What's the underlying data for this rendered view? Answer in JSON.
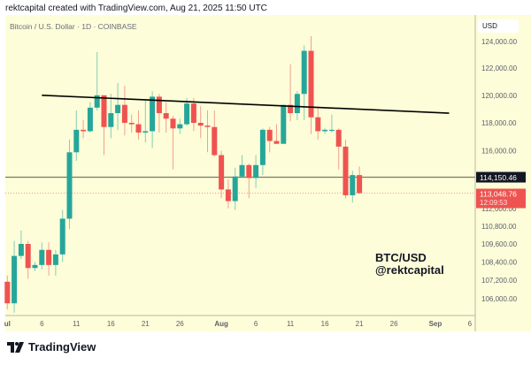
{
  "header": {
    "credit": "rektcapital created with TradingView.com, Aug 21, 2025 11:50 UTC"
  },
  "symbol_title": "Bitcoin / U.S. Dollar · 1D · COINBASE",
  "currency_label": "USD",
  "annotation": {
    "line1": "BTC/USD",
    "line2": "@rektcapital"
  },
  "footer": {
    "logo_text": "TradingView"
  },
  "colors": {
    "background": "#fdfdd9",
    "up": "#26a69a",
    "down": "#ef5350",
    "trendline": "#000000",
    "level_line": "#7b7d6a"
  },
  "chart_data": {
    "type": "candlestick",
    "title": "Bitcoin / U.S. Dollar · 1D · COINBASE",
    "y_scale": "log",
    "ylim": [
      105200,
      125300
    ],
    "y_ticks": [
      "124,000.00",
      "122,000.00",
      "120,000.00",
      "118,000.00",
      "116,000.00",
      "112,000.00",
      "110,800.00",
      "109,600.00",
      "108,400.00",
      "107,200.00",
      "106,000.00"
    ],
    "y_tick_values": [
      124000,
      122000,
      120000,
      118000,
      116000,
      112000,
      110800,
      109600,
      108400,
      107200,
      106000
    ],
    "x_ticks": [
      {
        "label": "ul",
        "date": "2025-07-01"
      },
      {
        "label": "6",
        "date": "2025-07-06"
      },
      {
        "label": "11",
        "date": "2025-07-11"
      },
      {
        "label": "16",
        "date": "2025-07-16"
      },
      {
        "label": "21",
        "date": "2025-07-21"
      },
      {
        "label": "26",
        "date": "2025-07-26"
      },
      {
        "label": "Aug",
        "date": "2025-08-01"
      },
      {
        "label": "6",
        "date": "2025-08-06"
      },
      {
        "label": "11",
        "date": "2025-08-11"
      },
      {
        "label": "16",
        "date": "2025-08-16"
      },
      {
        "label": "21",
        "date": "2025-08-21"
      },
      {
        "label": "26",
        "date": "2025-08-26"
      },
      {
        "label": "Sep",
        "date": "2025-09-01"
      },
      {
        "label": "6",
        "date": "2025-09-06"
      }
    ],
    "candles_fields": [
      "date",
      "open",
      "high",
      "low",
      "close"
    ],
    "candles": [
      [
        "2025-07-01",
        107100,
        107500,
        105300,
        105700
      ],
      [
        "2025-07-02",
        105700,
        109800,
        105100,
        108800
      ],
      [
        "2025-07-03",
        108800,
        110500,
        108600,
        109600
      ],
      [
        "2025-07-04",
        109600,
        109800,
        107300,
        108000
      ],
      [
        "2025-07-05",
        108000,
        108400,
        107800,
        108200
      ],
      [
        "2025-07-06",
        108200,
        109700,
        107900,
        109200
      ],
      [
        "2025-07-07",
        109200,
        109700,
        107500,
        108200
      ],
      [
        "2025-07-08",
        108200,
        109200,
        107500,
        108900
      ],
      [
        "2025-07-09",
        108900,
        111900,
        108400,
        111300
      ],
      [
        "2025-07-10",
        111300,
        116800,
        110600,
        115900
      ],
      [
        "2025-07-11",
        115900,
        118900,
        115300,
        117500
      ],
      [
        "2025-07-12",
        117500,
        118200,
        116900,
        117400
      ],
      [
        "2025-07-13",
        117400,
        119500,
        117300,
        119100
      ],
      [
        "2025-07-14",
        119100,
        123200,
        118900,
        120000
      ],
      [
        "2025-07-15",
        120000,
        120000,
        115700,
        117700
      ],
      [
        "2025-07-16",
        117700,
        120100,
        116900,
        118700
      ],
      [
        "2025-07-17",
        118700,
        120900,
        117500,
        119300
      ],
      [
        "2025-07-18",
        119300,
        120700,
        117100,
        118000
      ],
      [
        "2025-07-19",
        118000,
        118600,
        117300,
        117900
      ],
      [
        "2025-07-20",
        117900,
        118900,
        116800,
        117300
      ],
      [
        "2025-07-21",
        117300,
        119700,
        116600,
        117400
      ],
      [
        "2025-07-22",
        117400,
        120300,
        116200,
        119900
      ],
      [
        "2025-07-23",
        119900,
        120100,
        117300,
        118700
      ],
      [
        "2025-07-24",
        118700,
        119500,
        117300,
        118300
      ],
      [
        "2025-07-25",
        118300,
        118500,
        114700,
        117600
      ],
      [
        "2025-07-26",
        117600,
        118300,
        117200,
        117900
      ],
      [
        "2025-07-27",
        117900,
        119800,
        117800,
        119400
      ],
      [
        "2025-07-28",
        119400,
        119800,
        117400,
        118000
      ],
      [
        "2025-07-29",
        118000,
        119200,
        116900,
        117800
      ],
      [
        "2025-07-30",
        117800,
        118900,
        115900,
        117700
      ],
      [
        "2025-07-31",
        117700,
        118900,
        115600,
        115700
      ],
      [
        "2025-08-01",
        115700,
        116000,
        112700,
        113300
      ],
      [
        "2025-08-02",
        113300,
        114000,
        112000,
        112500
      ],
      [
        "2025-08-03",
        112500,
        114800,
        111900,
        114200
      ],
      [
        "2025-08-04",
        114200,
        115700,
        114100,
        115000
      ],
      [
        "2025-08-05",
        115000,
        115100,
        112700,
        114100
      ],
      [
        "2025-08-06",
        114100,
        115700,
        113400,
        115000
      ],
      [
        "2025-08-07",
        115000,
        117600,
        114300,
        117500
      ],
      [
        "2025-08-08",
        117500,
        117700,
        115900,
        116700
      ],
      [
        "2025-08-09",
        116700,
        117900,
        116500,
        116500
      ],
      [
        "2025-08-10",
        116500,
        119300,
        116500,
        119300
      ],
      [
        "2025-08-11",
        119300,
        122300,
        118100,
        118700
      ],
      [
        "2025-08-12",
        118700,
        120300,
        118200,
        120100
      ],
      [
        "2025-08-13",
        120100,
        123700,
        118200,
        123300
      ],
      [
        "2025-08-14",
        123300,
        124400,
        117200,
        118400
      ],
      [
        "2025-08-15",
        118400,
        119200,
        116800,
        117400
      ],
      [
        "2025-08-16",
        117400,
        117600,
        117200,
        117500
      ],
      [
        "2025-08-17",
        117500,
        118600,
        117300,
        117500
      ],
      [
        "2025-08-18",
        117500,
        117600,
        114700,
        116300
      ],
      [
        "2025-08-19",
        116300,
        116800,
        112700,
        112900
      ],
      [
        "2025-08-20",
        112900,
        114600,
        112400,
        114300
      ],
      [
        "2025-08-21",
        114300,
        114900,
        113000,
        113048.76
      ]
    ],
    "trendline": {
      "start": {
        "date": "2025-07-06",
        "price": 120000
      },
      "end": {
        "date": "2025-09-03",
        "price": 118700
      }
    },
    "horizontal_level": {
      "price": 114150.46,
      "label": "114,150.46"
    },
    "last_price": {
      "price": 113048.76,
      "label": "113,048.76",
      "countdown": "12:09:53"
    }
  }
}
